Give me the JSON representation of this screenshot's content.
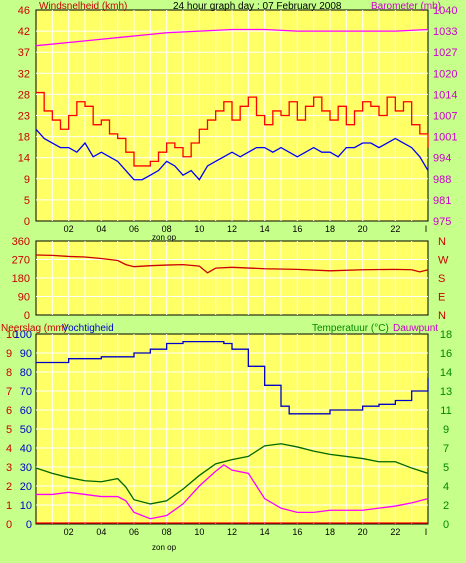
{
  "colors": {
    "background": "#c6ff8a",
    "plot_bg": "#ffff66",
    "wind": "#ff0000",
    "wind_gust_fill": "#ff0000",
    "wind_avg": "#0000ff",
    "barometer": "#ff00ff",
    "direction": "#cc0000",
    "humidity": "#0000cc",
    "temperature": "#006600",
    "dewpoint": "#ff00ff",
    "rain": "#ff0000",
    "left_label": "#cc0000",
    "right_label": "#cc00cc",
    "temp_label": "#008800",
    "grid": "#ffffff"
  },
  "chart_data": [
    {
      "type": "line",
      "title": "24 hour graph day : 07 February 2008",
      "left_label": "Windsnelheid (kmh)",
      "right_label": "Barometer (mb)",
      "ylim_left": [
        0,
        46
      ],
      "yticks_left": [
        "0",
        "5",
        "9",
        "14",
        "18",
        "23",
        "28",
        "32",
        "37",
        "42",
        "46"
      ],
      "ylim_right": [
        975,
        1040
      ],
      "yticks_right": [
        "975",
        "981",
        "988",
        "994",
        "1001",
        "1007",
        "1014",
        "1020",
        "1027",
        "1033",
        "1040"
      ],
      "x_ticks": [
        "02",
        "04",
        "06",
        "08",
        "10",
        "12",
        "14",
        "16",
        "18",
        "20",
        "22"
      ],
      "x_end_tick": "I",
      "sun_label": "zon op",
      "series": [
        {
          "name": "Windsnelheid (kmh)",
          "x": [
            0,
            0.5,
            1,
            1.5,
            2,
            2.5,
            3,
            3.5,
            4,
            4.5,
            5,
            5.5,
            6,
            6.5,
            7,
            7.5,
            8,
            8.5,
            9,
            9.5,
            10,
            10.5,
            11,
            11.5,
            12,
            12.5,
            13,
            13.5,
            14,
            14.5,
            15,
            15.5,
            16,
            16.5,
            17,
            17.5,
            18,
            18.5,
            19,
            19.5,
            20,
            20.5,
            21,
            21.5,
            22,
            22.5,
            23,
            23.5,
            24
          ],
          "values": [
            28,
            24,
            22,
            20,
            23,
            26,
            25,
            21,
            22,
            19,
            18,
            15,
            12,
            12,
            13,
            15,
            17,
            16,
            14,
            17,
            20,
            22,
            24,
            26,
            22,
            25,
            27,
            23,
            21,
            24,
            23,
            26,
            22,
            25,
            27,
            24,
            22,
            25,
            21,
            24,
            26,
            25,
            23,
            27,
            24,
            26,
            21,
            19,
            16
          ]
        },
        {
          "name": "Windsnelheid gemiddeld",
          "x": [
            0,
            0.5,
            1,
            1.5,
            2,
            2.5,
            3,
            3.5,
            4,
            4.5,
            5,
            5.5,
            6,
            6.5,
            7,
            7.5,
            8,
            8.5,
            9,
            9.5,
            10,
            10.5,
            11,
            11.5,
            12,
            12.5,
            13,
            13.5,
            14,
            14.5,
            15,
            15.5,
            16,
            16.5,
            17,
            17.5,
            18,
            18.5,
            19,
            19.5,
            20,
            20.5,
            21,
            21.5,
            22,
            22.5,
            23,
            23.5,
            24
          ],
          "values": [
            20,
            18,
            17,
            16,
            16,
            15,
            17,
            14,
            15,
            14,
            13,
            11,
            9,
            9,
            10,
            11,
            13,
            12,
            10,
            11,
            9,
            12,
            13,
            14,
            15,
            14,
            15,
            16,
            16,
            15,
            16,
            15,
            14,
            15,
            16,
            15,
            15,
            14,
            16,
            16,
            17,
            17,
            16,
            17,
            18,
            17,
            16,
            14,
            11
          ]
        },
        {
          "name": "Barometer (mb)",
          "axis": "right",
          "x": [
            0,
            2,
            4,
            6,
            8,
            10,
            12,
            14,
            16,
            18,
            20,
            22,
            24
          ],
          "values": [
            1029,
            1030,
            1031,
            1032,
            1033,
            1033.5,
            1034,
            1034,
            1033.5,
            1033.5,
            1033.5,
            1033.5,
            1034
          ]
        }
      ]
    },
    {
      "type": "line",
      "yticks": [
        "0",
        "90",
        "180",
        "270",
        "360"
      ],
      "ylim": [
        0,
        360
      ],
      "right_letters": [
        "N",
        "W",
        "S",
        "E",
        "N"
      ],
      "series": [
        {
          "name": "Windrichting",
          "x": [
            0,
            1,
            2,
            3,
            4,
            5,
            5.5,
            6,
            7,
            8,
            9,
            10,
            10.5,
            11,
            12,
            14,
            16,
            18,
            20,
            22,
            23,
            23.5,
            24
          ],
          "values": [
            292,
            290,
            285,
            282,
            275,
            265,
            245,
            235,
            240,
            243,
            245,
            238,
            205,
            228,
            232,
            225,
            222,
            215,
            220,
            222,
            220,
            210,
            220
          ]
        }
      ]
    },
    {
      "type": "line",
      "left_label": "Neerslag (mm)",
      "left_label2": "Vochtigheid",
      "right_label": "Temperatuur (°C)",
      "right_label2": "Dauwpunt",
      "ylim_rain": [
        0,
        10
      ],
      "yticks_rain": [
        "0",
        "1",
        "2",
        "3",
        "4",
        "5",
        "6",
        "7",
        "8",
        "9",
        "10"
      ],
      "ylim_humidity": [
        0,
        100
      ],
      "yticks_humidity": [
        "0",
        "10",
        "20",
        "30",
        "40",
        "50",
        "60",
        "70",
        "80",
        "90",
        "100"
      ],
      "ylim_temp": [
        0,
        18
      ],
      "yticks_temp": [
        "0",
        "2",
        "4",
        "5",
        "7",
        "9",
        "11",
        "13",
        "14",
        "16",
        "18"
      ],
      "x_ticks": [
        "02",
        "04",
        "06",
        "08",
        "10",
        "12",
        "14",
        "16",
        "18",
        "20",
        "22"
      ],
      "x_end_tick": "I",
      "sun_label": "zon op",
      "series": [
        {
          "name": "Vochtigheid",
          "axis": "humidity",
          "x": [
            0,
            2,
            4,
            5,
            6,
            7,
            8,
            9,
            10,
            11,
            11.5,
            12,
            13,
            14,
            15,
            15.5,
            16,
            18,
            20,
            21,
            22,
            23,
            24
          ],
          "values": [
            85,
            87,
            88,
            88,
            90,
            92,
            95,
            96,
            96,
            96,
            95,
            92,
            83,
            73,
            62,
            58,
            58,
            60,
            62,
            63,
            65,
            70,
            77
          ]
        },
        {
          "name": "Temperatuur (°C)",
          "axis": "temp",
          "x": [
            0,
            1,
            2,
            3,
            4,
            5,
            5.5,
            6,
            7,
            8,
            9,
            10,
            11,
            12,
            13,
            14,
            15,
            16,
            17,
            18,
            19,
            20,
            21,
            22,
            23,
            24
          ],
          "values": [
            5.3,
            4.8,
            4.4,
            4.1,
            4.0,
            4.3,
            3.5,
            2.3,
            1.9,
            2.2,
            3.3,
            4.6,
            5.7,
            6.1,
            6.4,
            7.4,
            7.6,
            7.3,
            6.9,
            6.6,
            6.4,
            6.2,
            5.9,
            5.9,
            5.3,
            4.8
          ]
        },
        {
          "name": "Dauwpunt",
          "axis": "temp",
          "x": [
            0,
            1,
            2,
            3,
            4,
            5,
            5.5,
            6,
            7,
            8,
            9,
            10,
            11,
            11.5,
            12,
            13,
            14,
            15,
            16,
            17,
            18,
            19,
            20,
            21,
            22,
            23,
            24
          ],
          "values": [
            2.8,
            2.8,
            3.0,
            2.8,
            2.6,
            2.6,
            2.2,
            1.1,
            0.5,
            0.8,
            1.9,
            3.6,
            5.0,
            5.6,
            5.1,
            4.8,
            2.4,
            1.5,
            1.1,
            1.1,
            1.3,
            1.3,
            1.3,
            1.5,
            1.7,
            2.0,
            2.4
          ]
        },
        {
          "name": "Neerslag (mm)",
          "axis": "rain",
          "x": [
            0,
            24
          ],
          "values": [
            0,
            0
          ]
        }
      ]
    }
  ]
}
